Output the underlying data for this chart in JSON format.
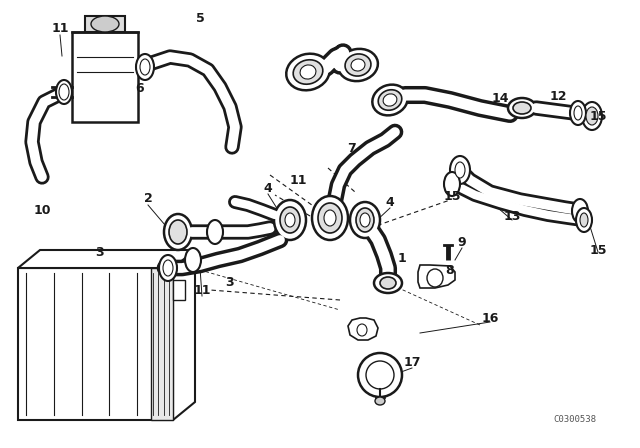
{
  "bg_color": "#ffffff",
  "line_color": "#1a1a1a",
  "fig_width": 6.4,
  "fig_height": 4.48,
  "dpi": 100,
  "watermark": "C0300538",
  "labels": [
    [
      "11",
      60,
      28
    ],
    [
      "5",
      198,
      20
    ],
    [
      "6",
      142,
      88
    ],
    [
      "7",
      358,
      148
    ],
    [
      "14",
      500,
      100
    ],
    [
      "12",
      558,
      98
    ],
    [
      "15",
      600,
      118
    ],
    [
      "10",
      44,
      210
    ],
    [
      "2",
      148,
      198
    ],
    [
      "4",
      270,
      190
    ],
    [
      "11",
      300,
      182
    ],
    [
      "4",
      388,
      204
    ],
    [
      "15",
      450,
      196
    ],
    [
      "13",
      510,
      218
    ],
    [
      "15",
      598,
      250
    ],
    [
      "1",
      400,
      258
    ],
    [
      "9",
      462,
      244
    ],
    [
      "8",
      452,
      268
    ],
    [
      "3",
      102,
      252
    ],
    [
      "11",
      204,
      288
    ],
    [
      "3",
      230,
      284
    ],
    [
      "16",
      490,
      316
    ],
    [
      "17",
      412,
      360
    ]
  ]
}
